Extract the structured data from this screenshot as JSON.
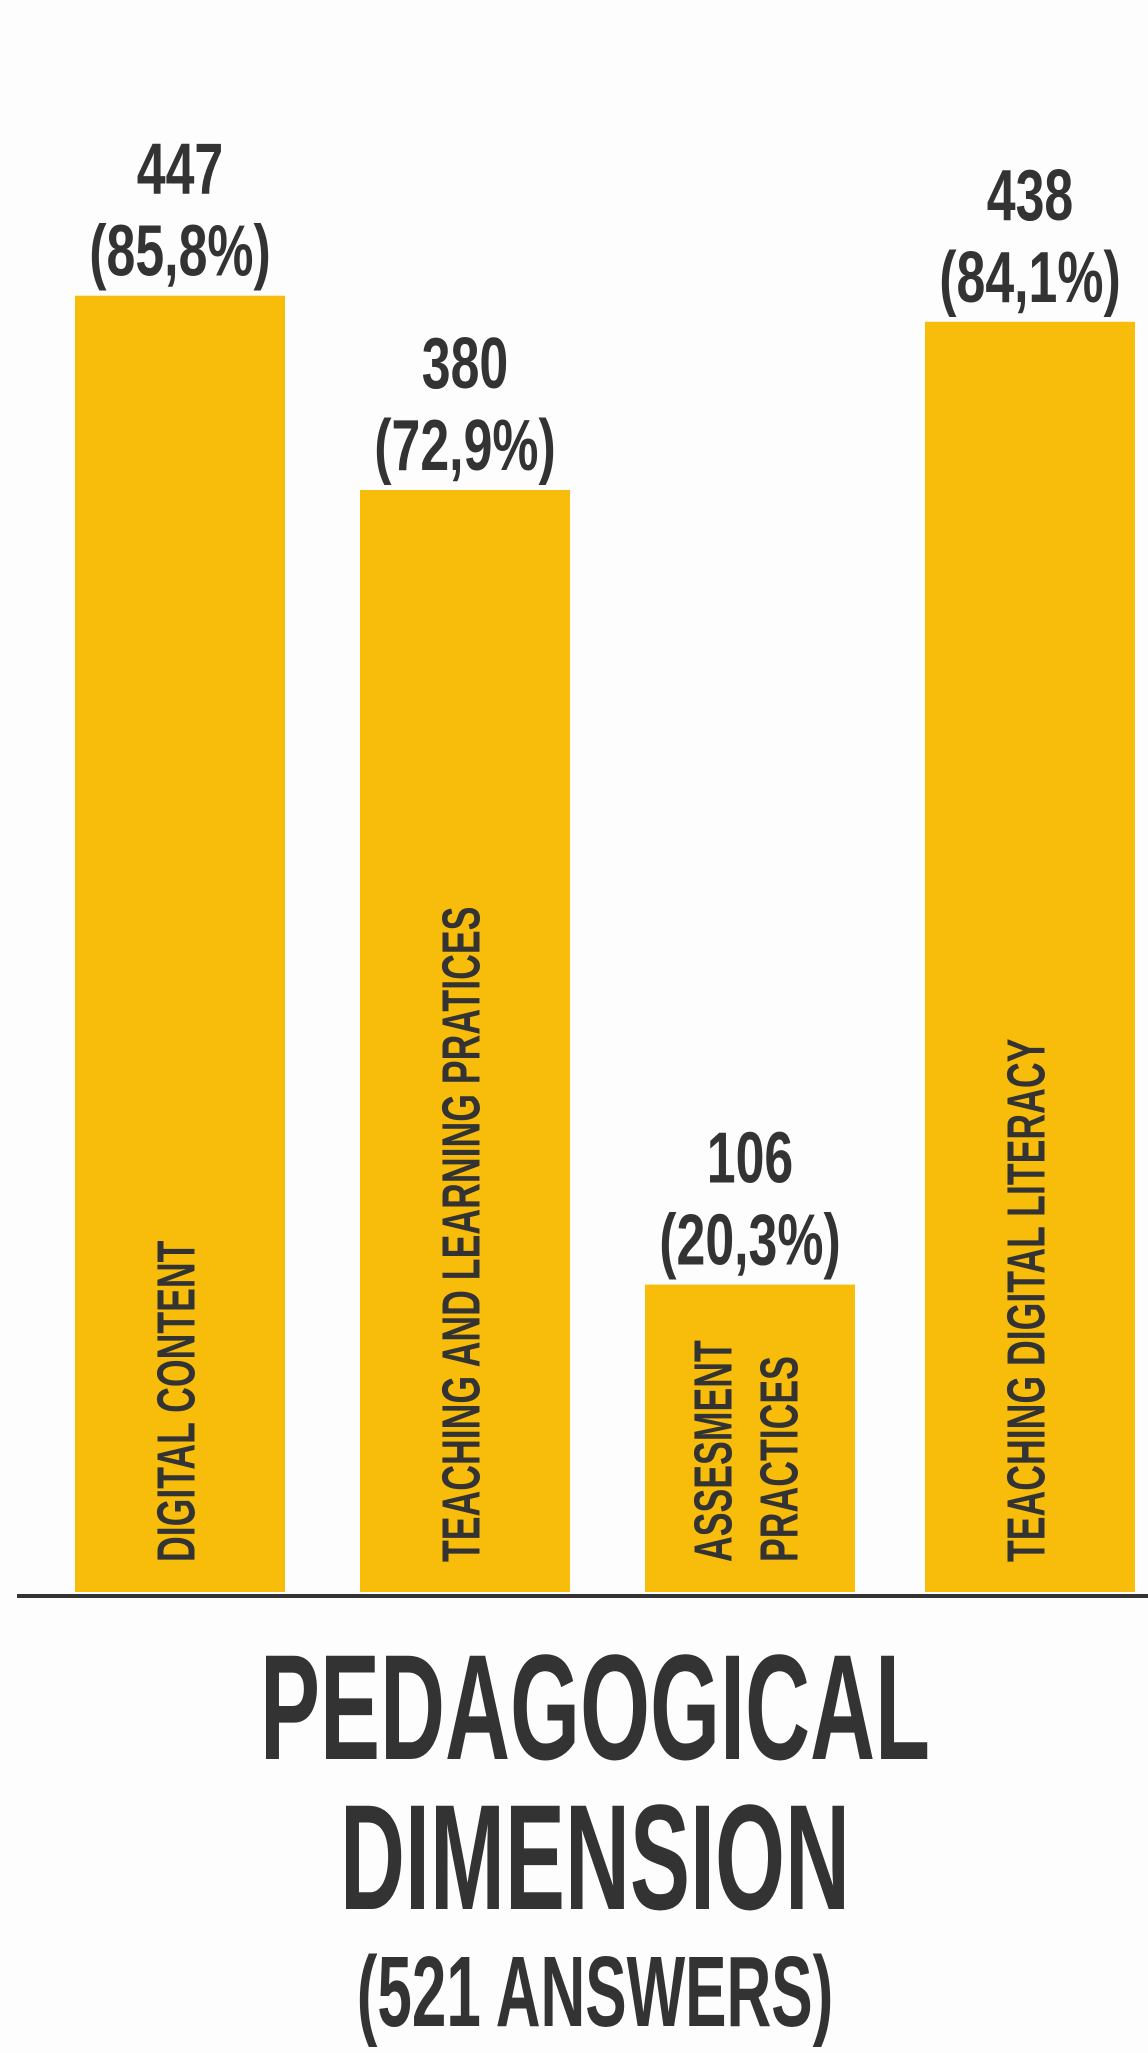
{
  "chart_data": {
    "type": "bar",
    "categories": [
      [
        "DIGITAL CONTENT"
      ],
      [
        "TEACHING AND LEARNING PRATICES"
      ],
      [
        "ASSESMENT",
        "PRACTICES"
      ],
      [
        "TEACHING DIGITAL LITERACY"
      ]
    ],
    "values": [
      447,
      380,
      106,
      438
    ],
    "percent_labels": [
      "(85,8%)",
      "(72,9%)",
      "(20,3%)",
      "(84,1%)"
    ],
    "value_labels": [
      "447",
      "380",
      "106",
      "438"
    ],
    "title": "PEDAGOGICAL DIMENSION (521 ANSWERS)",
    "total_answers": 521,
    "ylim": [
      0,
      521
    ],
    "grid": false,
    "legend": "none"
  },
  "title": {
    "line1": "PEDAGOGICAL",
    "line2": "DIMENSION",
    "line3": "(521 ANSWERS)"
  },
  "colors": {
    "bar": "#F8BC0A",
    "text": "#333333",
    "axis": "#333333",
    "background": "#FDFDFD"
  }
}
